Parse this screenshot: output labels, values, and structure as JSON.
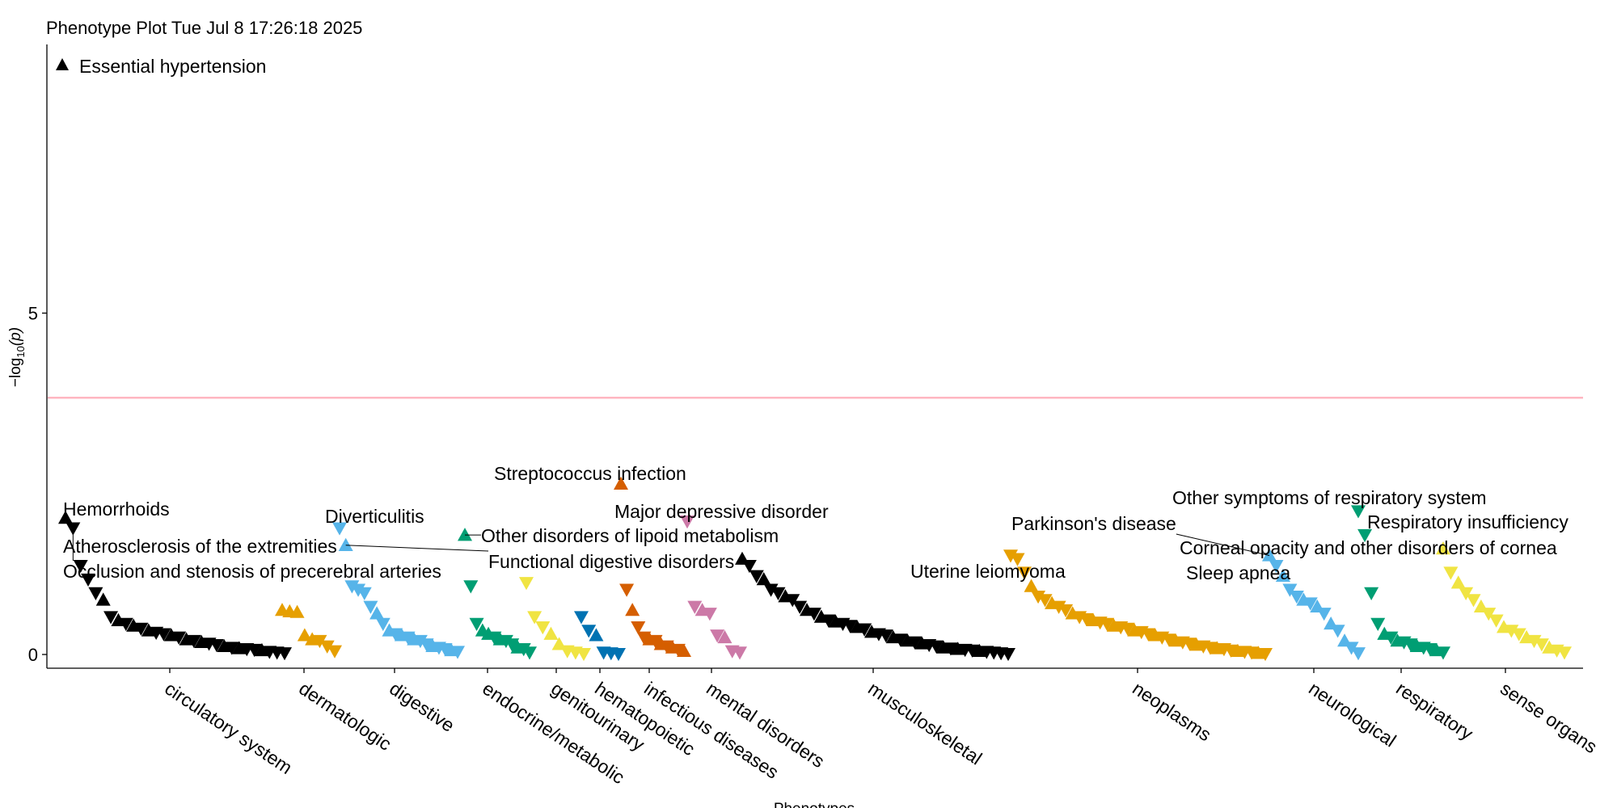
{
  "chart_data": {
    "type": "scatter",
    "title": "Phenotype Plot Tue Jul  8 17:26:18 2025",
    "xlabel": "Phenotypes",
    "ylabel_main": "−log",
    "ylabel_sub": "10",
    "ylabel_var": "(p)",
    "ylim": [
      -0.2,
      9.5
    ],
    "yticks": [
      {
        "value": 0,
        "label": "0"
      },
      {
        "value": 5,
        "label": "5"
      }
    ],
    "threshold": 3.76,
    "threshold_color": "#ffb6c1",
    "legend": {
      "label": "Essential hypertension",
      "marker": "triangle-up",
      "position": "top-left"
    },
    "categories": [
      {
        "name": "circulatory system",
        "color": "#000000",
        "points": [
          {
            "y": 2.0,
            "up": true
          },
          {
            "y": 1.85,
            "up": false
          },
          {
            "y": 1.3,
            "up": false
          },
          {
            "y": 1.1,
            "up": false
          },
          {
            "y": 0.9,
            "up": false
          },
          {
            "y": 0.8,
            "up": true
          },
          {
            "y": 0.55,
            "up": false
          },
          {
            "y": 0.5,
            "up": true
          },
          {
            "y": 0.45,
            "up": false
          },
          {
            "y": 0.42,
            "up": true
          },
          {
            "y": 0.38,
            "up": false
          },
          {
            "y": 0.35,
            "up": true
          },
          {
            "y": 0.32,
            "up": false
          },
          {
            "y": 0.3,
            "up": false
          },
          {
            "y": 0.28,
            "up": true
          },
          {
            "y": 0.25,
            "up": false
          },
          {
            "y": 0.22,
            "up": true
          },
          {
            "y": 0.2,
            "up": false
          },
          {
            "y": 0.18,
            "up": true
          },
          {
            "y": 0.16,
            "up": false
          },
          {
            "y": 0.14,
            "up": false
          },
          {
            "y": 0.12,
            "up": true
          },
          {
            "y": 0.1,
            "up": false
          },
          {
            "y": 0.09,
            "up": true
          },
          {
            "y": 0.08,
            "up": false
          },
          {
            "y": 0.07,
            "up": false
          },
          {
            "y": 0.06,
            "up": true
          },
          {
            "y": 0.04,
            "up": false
          },
          {
            "y": 0.03,
            "up": false
          },
          {
            "y": 0.02,
            "up": false
          }
        ]
      },
      {
        "name": "dermatologic",
        "color": "#e69f00",
        "points": [
          {
            "y": 0.65,
            "up": true
          },
          {
            "y": 0.63,
            "up": true
          },
          {
            "y": 0.62,
            "up": true
          },
          {
            "y": 0.28,
            "up": true
          },
          {
            "y": 0.22,
            "up": true
          },
          {
            "y": 0.2,
            "up": false
          },
          {
            "y": 0.12,
            "up": false
          },
          {
            "y": 0.05,
            "up": false
          }
        ]
      },
      {
        "name": "digestive",
        "color": "#56b4e9",
        "points": [
          {
            "y": 1.85,
            "up": false
          },
          {
            "y": 1.6,
            "up": true
          },
          {
            "y": 1.0,
            "up": false
          },
          {
            "y": 0.95,
            "up": false
          },
          {
            "y": 0.9,
            "up": false
          },
          {
            "y": 0.7,
            "up": false
          },
          {
            "y": 0.6,
            "up": true
          },
          {
            "y": 0.45,
            "up": false
          },
          {
            "y": 0.35,
            "up": true
          },
          {
            "y": 0.3,
            "up": false
          },
          {
            "y": 0.28,
            "up": true
          },
          {
            "y": 0.25,
            "up": false
          },
          {
            "y": 0.22,
            "up": true
          },
          {
            "y": 0.2,
            "up": false
          },
          {
            "y": 0.15,
            "up": false
          },
          {
            "y": 0.12,
            "up": true
          },
          {
            "y": 0.1,
            "up": false
          },
          {
            "y": 0.08,
            "up": false
          },
          {
            "y": 0.06,
            "up": true
          },
          {
            "y": 0.04,
            "up": false
          }
        ]
      },
      {
        "name": "endocrine/metabolic",
        "color": "#009e73",
        "points": [
          {
            "y": 1.75,
            "up": true
          },
          {
            "y": 1.0,
            "up": false
          },
          {
            "y": 0.45,
            "up": false
          },
          {
            "y": 0.35,
            "up": true
          },
          {
            "y": 0.3,
            "up": true
          },
          {
            "y": 0.25,
            "up": false
          },
          {
            "y": 0.22,
            "up": true
          },
          {
            "y": 0.2,
            "up": false
          },
          {
            "y": 0.15,
            "up": false
          },
          {
            "y": 0.1,
            "up": true
          },
          {
            "y": 0.08,
            "up": false
          },
          {
            "y": 0.03,
            "up": false
          }
        ]
      },
      {
        "name": "genitourinary",
        "color": "#f0e442",
        "points": [
          {
            "y": 1.05,
            "up": false
          },
          {
            "y": 0.55,
            "up": false
          },
          {
            "y": 0.4,
            "up": false
          },
          {
            "y": 0.3,
            "up": true
          },
          {
            "y": 0.15,
            "up": true
          },
          {
            "y": 0.05,
            "up": false
          },
          {
            "y": 0.03,
            "up": false
          },
          {
            "y": 0.01,
            "up": false
          }
        ]
      },
      {
        "name": "hematopoietic",
        "color": "#0072b2",
        "points": [
          {
            "y": 0.55,
            "up": false
          },
          {
            "y": 0.35,
            "up": false
          },
          {
            "y": 0.28,
            "up": true
          },
          {
            "y": 0.03,
            "up": false
          },
          {
            "y": 0.02,
            "up": false
          },
          {
            "y": 0.01,
            "up": false
          }
        ]
      },
      {
        "name": "infectious diseases",
        "color": "#d55e00",
        "points": [
          {
            "y": 2.5,
            "up": true
          },
          {
            "y": 0.95,
            "up": false
          },
          {
            "y": 0.65,
            "up": true
          },
          {
            "y": 0.4,
            "up": false
          },
          {
            "y": 0.25,
            "up": false
          },
          {
            "y": 0.22,
            "up": true
          },
          {
            "y": 0.2,
            "up": false
          },
          {
            "y": 0.15,
            "up": true
          },
          {
            "y": 0.12,
            "up": false
          },
          {
            "y": 0.1,
            "up": true
          },
          {
            "y": 0.07,
            "up": false
          },
          {
            "y": 0.05,
            "up": true
          }
        ]
      },
      {
        "name": "mental disorders",
        "color": "#cc79a7",
        "points": [
          {
            "y": 1.95,
            "up": false
          },
          {
            "y": 0.7,
            "up": false
          },
          {
            "y": 0.65,
            "up": true
          },
          {
            "y": 0.6,
            "up": false
          },
          {
            "y": 0.28,
            "up": false
          },
          {
            "y": 0.25,
            "up": true
          },
          {
            "y": 0.05,
            "up": false
          },
          {
            "y": 0.03,
            "up": false
          }
        ]
      },
      {
        "name": "musculoskeletal",
        "color": "#000000",
        "points": [
          {
            "y": 1.4,
            "up": true
          },
          {
            "y": 1.3,
            "up": false
          },
          {
            "y": 1.15,
            "up": false
          },
          {
            "y": 1.1,
            "up": true
          },
          {
            "y": 0.95,
            "up": false
          },
          {
            "y": 0.9,
            "up": false
          },
          {
            "y": 0.85,
            "up": true
          },
          {
            "y": 0.8,
            "up": false
          },
          {
            "y": 0.7,
            "up": false
          },
          {
            "y": 0.65,
            "up": true
          },
          {
            "y": 0.6,
            "up": false
          },
          {
            "y": 0.55,
            "up": true
          },
          {
            "y": 0.5,
            "up": false
          },
          {
            "y": 0.48,
            "up": true
          },
          {
            "y": 0.45,
            "up": false
          },
          {
            "y": 0.42,
            "up": false
          },
          {
            "y": 0.4,
            "up": true
          },
          {
            "y": 0.37,
            "up": false
          },
          {
            "y": 0.33,
            "up": true
          },
          {
            "y": 0.3,
            "up": false
          },
          {
            "y": 0.28,
            "up": false
          },
          {
            "y": 0.25,
            "up": true
          },
          {
            "y": 0.22,
            "up": false
          },
          {
            "y": 0.2,
            "up": true
          },
          {
            "y": 0.18,
            "up": false
          },
          {
            "y": 0.16,
            "up": true
          },
          {
            "y": 0.14,
            "up": false
          },
          {
            "y": 0.12,
            "up": false
          },
          {
            "y": 0.1,
            "up": true
          },
          {
            "y": 0.09,
            "up": false
          },
          {
            "y": 0.08,
            "up": true
          },
          {
            "y": 0.07,
            "up": false
          },
          {
            "y": 0.06,
            "up": false
          },
          {
            "y": 0.05,
            "up": true
          },
          {
            "y": 0.04,
            "up": false
          },
          {
            "y": 0.03,
            "up": false
          },
          {
            "y": 0.02,
            "up": false
          },
          {
            "y": 0.01,
            "up": false
          }
        ]
      },
      {
        "name": "neoplasms",
        "color": "#e69f00",
        "points": [
          {
            "y": 1.45,
            "up": false
          },
          {
            "y": 1.4,
            "up": false
          },
          {
            "y": 1.2,
            "up": false
          },
          {
            "y": 1.0,
            "up": true
          },
          {
            "y": 0.85,
            "up": false
          },
          {
            "y": 0.8,
            "up": false
          },
          {
            "y": 0.75,
            "up": true
          },
          {
            "y": 0.7,
            "up": false
          },
          {
            "y": 0.65,
            "up": false
          },
          {
            "y": 0.6,
            "up": true
          },
          {
            "y": 0.55,
            "up": false
          },
          {
            "y": 0.52,
            "up": false
          },
          {
            "y": 0.5,
            "up": true
          },
          {
            "y": 0.47,
            "up": false
          },
          {
            "y": 0.45,
            "up": false
          },
          {
            "y": 0.42,
            "up": true
          },
          {
            "y": 0.4,
            "up": false
          },
          {
            "y": 0.38,
            "up": false
          },
          {
            "y": 0.35,
            "up": true
          },
          {
            "y": 0.33,
            "up": false
          },
          {
            "y": 0.3,
            "up": false
          },
          {
            "y": 0.28,
            "up": true
          },
          {
            "y": 0.25,
            "up": false
          },
          {
            "y": 0.22,
            "up": false
          },
          {
            "y": 0.2,
            "up": true
          },
          {
            "y": 0.18,
            "up": false
          },
          {
            "y": 0.16,
            "up": false
          },
          {
            "y": 0.14,
            "up": true
          },
          {
            "y": 0.12,
            "up": false
          },
          {
            "y": 0.1,
            "up": false
          },
          {
            "y": 0.09,
            "up": true
          },
          {
            "y": 0.08,
            "up": false
          },
          {
            "y": 0.06,
            "up": false
          },
          {
            "y": 0.05,
            "up": true
          },
          {
            "y": 0.04,
            "up": false
          },
          {
            "y": 0.03,
            "up": false
          },
          {
            "y": 0.02,
            "up": true
          },
          {
            "y": 0.01,
            "up": false
          }
        ]
      },
      {
        "name": "neurological",
        "color": "#56b4e9",
        "points": [
          {
            "y": 1.45,
            "up": true
          },
          {
            "y": 1.3,
            "up": false
          },
          {
            "y": 1.15,
            "up": true
          },
          {
            "y": 0.95,
            "up": false
          },
          {
            "y": 0.85,
            "up": false
          },
          {
            "y": 0.8,
            "up": true
          },
          {
            "y": 0.75,
            "up": false
          },
          {
            "y": 0.7,
            "up": true
          },
          {
            "y": 0.6,
            "up": false
          },
          {
            "y": 0.45,
            "up": true
          },
          {
            "y": 0.35,
            "up": false
          },
          {
            "y": 0.2,
            "up": true
          },
          {
            "y": 0.1,
            "up": false
          },
          {
            "y": 0.02,
            "up": false
          }
        ]
      },
      {
        "name": "respiratory",
        "color": "#009e73",
        "points": [
          {
            "y": 2.1,
            "up": false
          },
          {
            "y": 1.75,
            "up": false
          },
          {
            "y": 0.9,
            "up": false
          },
          {
            "y": 0.45,
            "up": false
          },
          {
            "y": 0.3,
            "up": true
          },
          {
            "y": 0.25,
            "up": false
          },
          {
            "y": 0.2,
            "up": true
          },
          {
            "y": 0.18,
            "up": false
          },
          {
            "y": 0.15,
            "up": false
          },
          {
            "y": 0.12,
            "up": true
          },
          {
            "y": 0.1,
            "up": false
          },
          {
            "y": 0.08,
            "up": false
          },
          {
            "y": 0.06,
            "up": true
          },
          {
            "y": 0.03,
            "up": false
          }
        ]
      },
      {
        "name": "sense organs",
        "color": "#f0e442",
        "points": [
          {
            "y": 1.55,
            "up": true
          },
          {
            "y": 1.2,
            "up": false
          },
          {
            "y": 1.05,
            "up": true
          },
          {
            "y": 0.9,
            "up": false
          },
          {
            "y": 0.8,
            "up": false
          },
          {
            "y": 0.7,
            "up": true
          },
          {
            "y": 0.6,
            "up": false
          },
          {
            "y": 0.5,
            "up": false
          },
          {
            "y": 0.4,
            "up": true
          },
          {
            "y": 0.35,
            "up": false
          },
          {
            "y": 0.3,
            "up": false
          },
          {
            "y": 0.25,
            "up": true
          },
          {
            "y": 0.2,
            "up": false
          },
          {
            "y": 0.15,
            "up": false
          },
          {
            "y": 0.1,
            "up": true
          },
          {
            "y": 0.06,
            "up": false
          },
          {
            "y": 0.03,
            "up": false
          }
        ]
      }
    ],
    "annotations": [
      {
        "text": "Hemorrhoids",
        "cat": 0,
        "idx": 0
      },
      {
        "text": "Atherosclerosis of the extremities",
        "cat": 0,
        "idx": 1
      },
      {
        "text": "Occlusion and stenosis of precerebral arteries",
        "cat": 0,
        "idx": 1
      },
      {
        "text": "Diverticulitis",
        "cat": 2,
        "idx": 0
      },
      {
        "text": "Functional digestive disorders",
        "cat": 2,
        "idx": 1
      },
      {
        "text": "Other disorders of lipoid metabolism",
        "cat": 3,
        "idx": 0
      },
      {
        "text": "Streptococcus infection",
        "cat": 6,
        "idx": 0
      },
      {
        "text": "Major depressive disorder",
        "cat": 7,
        "idx": 0
      },
      {
        "text": "Uterine leiomyoma",
        "cat": 9,
        "idx": 0
      },
      {
        "text": "Parkinson's disease",
        "cat": 10,
        "idx": 0
      },
      {
        "text": "Sleep apnea",
        "cat": 10,
        "idx": 1
      },
      {
        "text": "Other symptoms of respiratory system",
        "cat": 11,
        "idx": 0
      },
      {
        "text": "Respiratory insufficiency",
        "cat": 11,
        "idx": 1
      },
      {
        "text": "Corneal opacity and other disorders of cornea",
        "cat": 12,
        "idx": 0
      }
    ]
  }
}
